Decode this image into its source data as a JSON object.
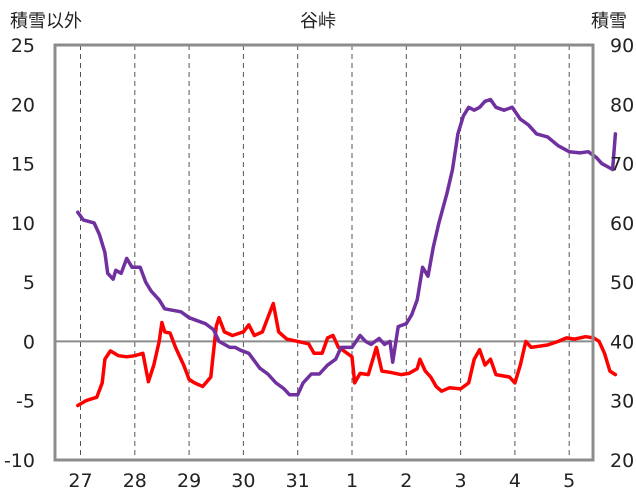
{
  "chart_data": {
    "type": "line",
    "title": "谷峠",
    "ylabel_left": "積雪以外",
    "ylabel_right": "積雪",
    "ylim_left": [
      -10,
      25
    ],
    "ylim_right": [
      20,
      90
    ],
    "yticks_left": [
      "25",
      "20",
      "15",
      "10",
      "5",
      "0",
      "-5",
      "-10"
    ],
    "yticks_right": [
      "90",
      "80",
      "70",
      "60",
      "50",
      "40",
      "30",
      "20"
    ],
    "xticks": [
      "27",
      "28",
      "29",
      "30",
      "31",
      "1",
      "2",
      "3",
      "4",
      "5"
    ],
    "xlim_days": [
      0,
      10
    ],
    "grid": "dashed vertical day lines, solid zero line",
    "colors": {
      "temperature": "#ff0000",
      "snow": "#7030a0"
    },
    "series": [
      {
        "axis": "left",
        "color": "#ff0000",
        "points": [
          [
            -0.05,
            -5.4
          ],
          [
            0.1,
            -5.0
          ],
          [
            0.3,
            -4.7
          ],
          [
            0.4,
            -3.5
          ],
          [
            0.45,
            -1.5
          ],
          [
            0.55,
            -0.8
          ],
          [
            0.7,
            -1.2
          ],
          [
            0.85,
            -1.3
          ],
          [
            1.0,
            -1.2
          ],
          [
            1.15,
            -1.0
          ],
          [
            1.25,
            -3.4
          ],
          [
            1.35,
            -2.0
          ],
          [
            1.45,
            0.0
          ],
          [
            1.5,
            1.6
          ],
          [
            1.55,
            0.8
          ],
          [
            1.65,
            0.7
          ],
          [
            1.75,
            -0.5
          ],
          [
            1.9,
            -2.0
          ],
          [
            2.0,
            -3.2
          ],
          [
            2.1,
            -3.5
          ],
          [
            2.25,
            -3.8
          ],
          [
            2.4,
            -3.0
          ],
          [
            2.5,
            1.3
          ],
          [
            2.55,
            2.0
          ],
          [
            2.65,
            0.8
          ],
          [
            2.8,
            0.5
          ],
          [
            3.0,
            0.8
          ],
          [
            3.1,
            1.4
          ],
          [
            3.2,
            0.5
          ],
          [
            3.35,
            0.8
          ],
          [
            3.45,
            2.0
          ],
          [
            3.55,
            3.2
          ],
          [
            3.65,
            0.8
          ],
          [
            3.8,
            0.2
          ],
          [
            4.0,
            0.0
          ],
          [
            4.2,
            -0.2
          ],
          [
            4.3,
            -1.0
          ],
          [
            4.45,
            -1.0
          ],
          [
            4.55,
            0.3
          ],
          [
            4.65,
            0.5
          ],
          [
            4.75,
            -0.5
          ],
          [
            4.85,
            -0.8
          ],
          [
            5.0,
            -1.3
          ],
          [
            5.05,
            -3.5
          ],
          [
            5.15,
            -2.7
          ],
          [
            5.3,
            -2.8
          ],
          [
            5.45,
            -0.5
          ],
          [
            5.55,
            -2.5
          ],
          [
            5.7,
            -2.6
          ],
          [
            5.9,
            -2.8
          ],
          [
            6.05,
            -2.7
          ],
          [
            6.2,
            -2.3
          ],
          [
            6.25,
            -1.5
          ],
          [
            6.35,
            -2.5
          ],
          [
            6.45,
            -3.0
          ],
          [
            6.55,
            -3.8
          ],
          [
            6.65,
            -4.2
          ],
          [
            6.8,
            -3.9
          ],
          [
            7.0,
            -4.0
          ],
          [
            7.15,
            -3.5
          ],
          [
            7.25,
            -1.5
          ],
          [
            7.35,
            -0.7
          ],
          [
            7.45,
            -2.0
          ],
          [
            7.55,
            -1.5
          ],
          [
            7.65,
            -2.8
          ],
          [
            7.9,
            -3.0
          ],
          [
            8.0,
            -3.5
          ],
          [
            8.1,
            -2.0
          ],
          [
            8.2,
            0.0
          ],
          [
            8.3,
            -0.5
          ],
          [
            8.45,
            -0.4
          ],
          [
            8.6,
            -0.3
          ],
          [
            8.8,
            0.0
          ],
          [
            8.95,
            0.3
          ],
          [
            9.1,
            0.2
          ],
          [
            9.3,
            0.4
          ],
          [
            9.45,
            0.3
          ],
          [
            9.55,
            0.0
          ],
          [
            9.65,
            -1.0
          ],
          [
            9.75,
            -2.5
          ],
          [
            9.85,
            -2.8
          ]
        ]
      },
      {
        "axis": "right",
        "color": "#7030a0",
        "points": [
          [
            -0.05,
            61.8
          ],
          [
            0.05,
            60.5
          ],
          [
            0.25,
            60.0
          ],
          [
            0.35,
            58.0
          ],
          [
            0.45,
            55.0
          ],
          [
            0.5,
            51.5
          ],
          [
            0.6,
            50.5
          ],
          [
            0.65,
            52.0
          ],
          [
            0.75,
            51.5
          ],
          [
            0.85,
            54.0
          ],
          [
            0.95,
            52.5
          ],
          [
            1.1,
            52.5
          ],
          [
            1.2,
            50.0
          ],
          [
            1.3,
            48.5
          ],
          [
            1.45,
            47.0
          ],
          [
            1.55,
            45.5
          ],
          [
            1.85,
            45.0
          ],
          [
            2.0,
            44.0
          ],
          [
            2.15,
            43.5
          ],
          [
            2.3,
            43.0
          ],
          [
            2.45,
            42.0
          ],
          [
            2.55,
            40.0
          ],
          [
            2.65,
            39.5
          ],
          [
            2.75,
            39.0
          ],
          [
            2.85,
            39.0
          ],
          [
            2.95,
            38.5
          ],
          [
            3.1,
            38.0
          ],
          [
            3.3,
            35.5
          ],
          [
            3.45,
            34.5
          ],
          [
            3.6,
            33.0
          ],
          [
            3.75,
            32.0
          ],
          [
            3.85,
            31.0
          ],
          [
            4.0,
            31.0
          ],
          [
            4.1,
            33.0
          ],
          [
            4.25,
            34.5
          ],
          [
            4.4,
            34.5
          ],
          [
            4.55,
            36.0
          ],
          [
            4.7,
            37.0
          ],
          [
            4.8,
            39.0
          ],
          [
            5.0,
            39.0
          ],
          [
            5.15,
            41.0
          ],
          [
            5.25,
            40.0
          ],
          [
            5.35,
            39.5
          ],
          [
            5.5,
            40.5
          ],
          [
            5.6,
            39.5
          ],
          [
            5.7,
            40.0
          ],
          [
            5.75,
            36.5
          ],
          [
            5.85,
            42.5
          ],
          [
            6.0,
            43.0
          ],
          [
            6.1,
            44.5
          ],
          [
            6.2,
            47.0
          ],
          [
            6.3,
            52.5
          ],
          [
            6.4,
            51.0
          ],
          [
            6.5,
            56.0
          ],
          [
            6.6,
            60.0
          ],
          [
            6.75,
            65.0
          ],
          [
            6.85,
            69.0
          ],
          [
            6.95,
            75.0
          ],
          [
            7.05,
            78.0
          ],
          [
            7.15,
            79.5
          ],
          [
            7.25,
            79.0
          ],
          [
            7.35,
            79.5
          ],
          [
            7.45,
            80.5
          ],
          [
            7.55,
            80.8
          ],
          [
            7.65,
            79.5
          ],
          [
            7.8,
            79.0
          ],
          [
            7.95,
            79.5
          ],
          [
            8.1,
            77.5
          ],
          [
            8.25,
            76.5
          ],
          [
            8.4,
            75.0
          ],
          [
            8.6,
            74.5
          ],
          [
            8.8,
            73.0
          ],
          [
            9.0,
            72.0
          ],
          [
            9.2,
            71.8
          ],
          [
            9.35,
            72.0
          ],
          [
            9.5,
            71.0
          ],
          [
            9.6,
            70.0
          ],
          [
            9.7,
            69.5
          ],
          [
            9.8,
            69.0
          ],
          [
            9.85,
            75.0
          ]
        ]
      }
    ]
  }
}
